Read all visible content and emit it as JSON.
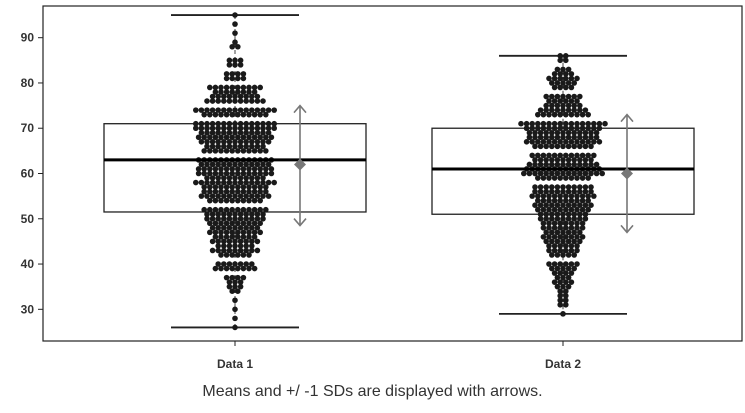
{
  "caption": "Means and +/ -1 SDs are displayed with arrows.",
  "chart_data": {
    "type": "box-beeswarm",
    "categories": [
      "Data 1",
      "Data 2"
    ],
    "ylim": [
      23,
      97
    ],
    "yticks": [
      30,
      40,
      50,
      60,
      70,
      80,
      90
    ],
    "grid": false,
    "boxes": [
      {
        "category": "Data 1",
        "whisker_low": 26,
        "q1": 51.5,
        "median": 63,
        "q3": 71,
        "whisker_high": 95,
        "mean": 62,
        "sd_low": 48.5,
        "sd_high": 75
      },
      {
        "category": "Data 2",
        "whisker_low": 29,
        "q1": 51,
        "median": 61,
        "q3": 70,
        "whisker_high": 86,
        "mean": 60,
        "sd_low": 47,
        "sd_high": 73
      }
    ],
    "points": [
      {
        "category": "Data 1",
        "bins": [
          [
            95,
            1
          ],
          [
            93,
            1
          ],
          [
            91,
            1
          ],
          [
            89,
            1
          ],
          [
            88,
            2
          ],
          [
            85,
            3
          ],
          [
            84,
            3
          ],
          [
            82,
            4
          ],
          [
            81,
            4
          ],
          [
            79,
            10
          ],
          [
            78,
            8
          ],
          [
            77,
            9
          ],
          [
            76,
            11
          ],
          [
            74,
            15
          ],
          [
            73,
            12
          ],
          [
            71,
            15
          ],
          [
            70,
            15
          ],
          [
            69,
            13
          ],
          [
            68,
            14
          ],
          [
            67,
            13
          ],
          [
            66,
            11
          ],
          [
            65,
            12
          ],
          [
            63,
            14
          ],
          [
            62,
            13
          ],
          [
            61,
            14
          ],
          [
            60,
            14
          ],
          [
            59,
            11
          ],
          [
            58,
            15
          ],
          [
            57,
            12
          ],
          [
            56,
            12
          ],
          [
            55,
            13
          ],
          [
            54,
            10
          ],
          [
            52,
            12
          ],
          [
            51,
            11
          ],
          [
            50,
            11
          ],
          [
            49,
            10
          ],
          [
            48,
            9
          ],
          [
            47,
            10
          ],
          [
            46,
            8
          ],
          [
            45,
            9
          ],
          [
            44,
            7
          ],
          [
            43,
            9
          ],
          [
            42,
            6
          ],
          [
            40,
            7
          ],
          [
            39,
            8
          ],
          [
            37,
            4
          ],
          [
            36,
            3
          ],
          [
            35,
            3
          ],
          [
            34,
            2
          ],
          [
            32,
            1
          ],
          [
            30,
            1
          ],
          [
            28,
            1
          ],
          [
            26,
            1
          ]
        ]
      },
      {
        "category": "Data 2",
        "bins": [
          [
            86,
            2
          ],
          [
            85,
            2
          ],
          [
            83,
            3
          ],
          [
            82,
            4
          ],
          [
            81,
            6
          ],
          [
            80,
            5
          ],
          [
            79,
            4
          ],
          [
            77,
            7
          ],
          [
            76,
            6
          ],
          [
            75,
            7
          ],
          [
            74,
            9
          ],
          [
            73,
            10
          ],
          [
            71,
            16
          ],
          [
            70,
            14
          ],
          [
            69,
            13
          ],
          [
            68,
            13
          ],
          [
            67,
            14
          ],
          [
            66,
            11
          ],
          [
            64,
            12
          ],
          [
            63,
            11
          ],
          [
            62,
            13
          ],
          [
            61,
            14
          ],
          [
            60,
            15
          ],
          [
            59,
            10
          ],
          [
            57,
            11
          ],
          [
            56,
            11
          ],
          [
            55,
            12
          ],
          [
            54,
            10
          ],
          [
            53,
            11
          ],
          [
            52,
            10
          ],
          [
            51,
            9
          ],
          [
            50,
            9
          ],
          [
            49,
            8
          ],
          [
            48,
            8
          ],
          [
            47,
            7
          ],
          [
            46,
            8
          ],
          [
            45,
            7
          ],
          [
            44,
            6
          ],
          [
            43,
            6
          ],
          [
            42,
            5
          ],
          [
            40,
            6
          ],
          [
            39,
            5
          ],
          [
            38,
            4
          ],
          [
            37,
            3
          ],
          [
            36,
            4
          ],
          [
            35,
            3
          ],
          [
            34,
            2
          ],
          [
            33,
            2
          ],
          [
            32,
            2
          ],
          [
            31,
            2
          ],
          [
            29,
            1
          ]
        ]
      }
    ]
  }
}
